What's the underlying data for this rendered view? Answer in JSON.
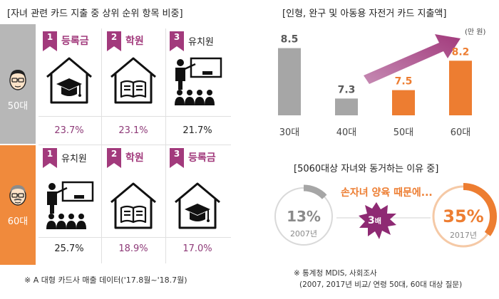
{
  "left": {
    "title": "[자녀 관련 카드 지출  중  상위 순위  항목 비중]",
    "groups": [
      {
        "age": "50대",
        "items": [
          {
            "rank": "1",
            "label": "등록금",
            "icon": "graduation-cap-house-icon",
            "pct": "23.7%",
            "highlight": true
          },
          {
            "rank": "2",
            "label": "학원",
            "icon": "book-house-icon",
            "pct": "23.1%",
            "highlight": true
          },
          {
            "rank": "3",
            "label": "유치원",
            "icon": "teacher-classroom-icon",
            "pct": "21.7%",
            "highlight": false
          }
        ]
      },
      {
        "age": "60대",
        "items": [
          {
            "rank": "1",
            "label": "유치원",
            "icon": "teacher-classroom-icon",
            "pct": "25.7%",
            "highlight": false
          },
          {
            "rank": "2",
            "label": "학원",
            "icon": "book-house-icon",
            "pct": "18.9%",
            "highlight": true
          },
          {
            "rank": "3",
            "label": "등록금",
            "icon": "graduation-cap-house-icon",
            "pct": "17.0%",
            "highlight": true
          }
        ]
      }
    ],
    "footnote": "※ A 대형 카드사 매출 데이터('17.8월~'18.7월)"
  },
  "chart_data": [
    {
      "type": "bar",
      "title": "[인형, 완구 및 아동용 자전거  카드 지출액]",
      "unit": "(만 원)",
      "categories": [
        "30대",
        "40대",
        "50대",
        "60대"
      ],
      "values": [
        8.5,
        7.3,
        7.5,
        8.2
      ],
      "value_labels": [
        "8.5",
        "7.3",
        "7.5",
        "8.2"
      ],
      "colors": [
        "#a6a6a6",
        "#a6a6a6",
        "#ed7d31",
        "#ed7d31"
      ],
      "ylim": [
        6.9,
        8.9
      ]
    },
    {
      "type": "pie",
      "title": "[5060대상 자녀와 동거하는 이유  중]",
      "headline": "손자녀 양육 때문에...",
      "multiplier_label": "3배",
      "multiplier_unit": "3",
      "multiplier_suffix": "배",
      "items": [
        {
          "year_label": "2007년",
          "value": 13,
          "value_label": "13%",
          "color": "#a6a6a6"
        },
        {
          "year_label": "2017년",
          "value": 35,
          "value_label": "35%",
          "color": "#ed7d31"
        }
      ]
    }
  ],
  "right_footnote": {
    "line1": "※ 통계청 MDIS, 사회조사",
    "line2": "(2007, 2017년 비교/ 연령 50대, 60대 대상 질문)"
  },
  "colors": {
    "gray_band": "#b7b7b7",
    "orange_band": "#f08a3c",
    "badge": "#a23a7c",
    "orange": "#ed7d31",
    "gray": "#a6a6a6"
  }
}
